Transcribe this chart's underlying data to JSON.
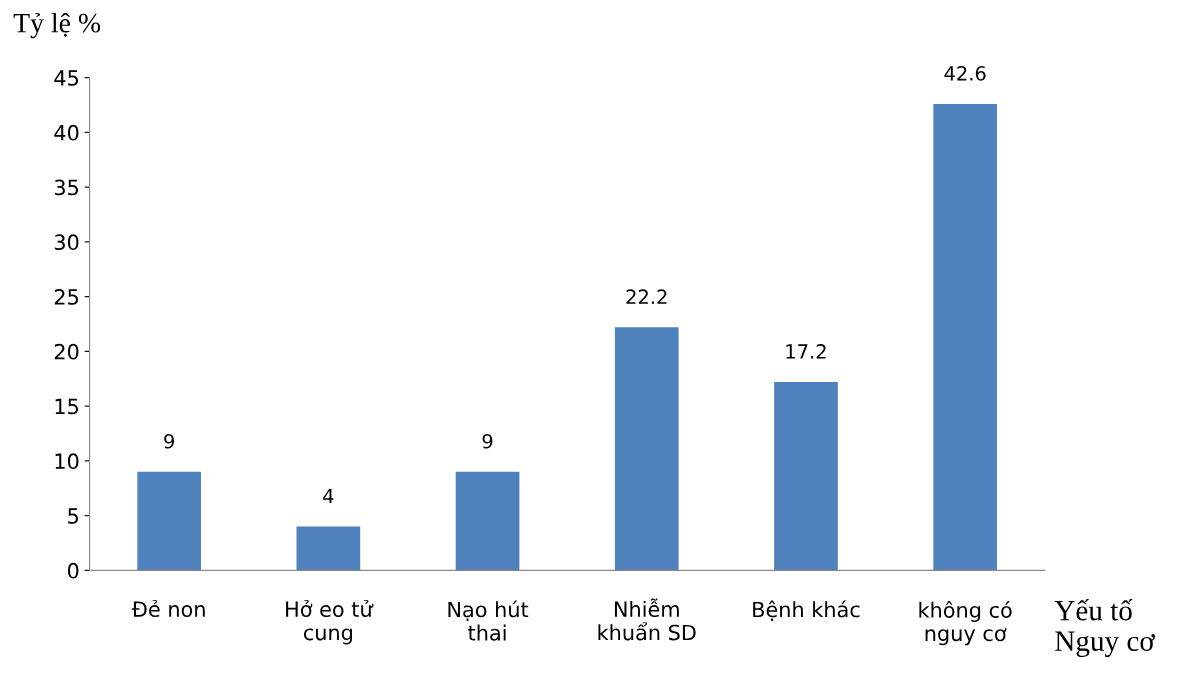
{
  "chart_data": {
    "type": "bar",
    "ylabel": "Tỷ lệ %",
    "xlabel": "Yếu tố\nNguy cơ",
    "categories": [
      "Đẻ non",
      "Hở eo tử\ncung",
      "Nạo hút\nthai",
      "Nhiễm\nkhuẩn SD",
      "Bệnh khác",
      "không có\nnguy cơ"
    ],
    "values": [
      9,
      4,
      9,
      22.2,
      17.2,
      42.6
    ],
    "color": "#4f81bd",
    "ylim": [
      0,
      45
    ],
    "yticks": [
      0,
      5,
      10,
      15,
      20,
      25,
      30,
      35,
      40,
      45
    ],
    "data_labels": true
  }
}
